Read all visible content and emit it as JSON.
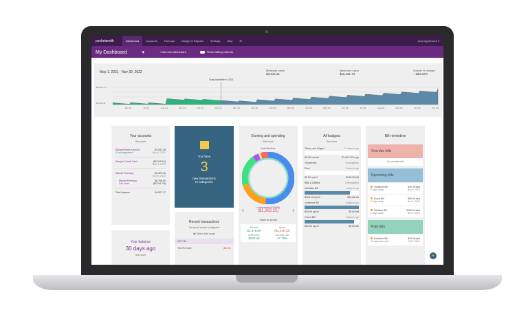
{
  "nav": {
    "logo": "pocketsmith",
    "items": [
      "Dashboard",
      "Accounts",
      "Forecast",
      "Budget & Reports",
      "Settings",
      "Help"
    ],
    "active": "Dashboard",
    "user": "Jane Appleseed"
  },
  "subbar": {
    "title": "My Dashboard",
    "add": "+ Add new dashboard",
    "toggle": "Show editing controls"
  },
  "balance_chart": {
    "range": "May 1, 2021 - Nov 30, 2022",
    "min_label": "Minimum value",
    "min": "$3,344.41",
    "max_label": "Maximum value",
    "max": "$11,231.73",
    "change_label": "Overall % change",
    "change": "↑ 190.22%",
    "today": "Today November 4, 2021"
  },
  "chart_data": {
    "type": "area",
    "x": [
      "May '21",
      "Jun '21",
      "Jul '21",
      "Aug '21",
      "Sep '21",
      "Oct '21",
      "Nov '21",
      "Dec '21",
      "Jan '22",
      "Feb '22",
      "Mar '22",
      "Apr '22",
      "May '22",
      "Jun '22",
      "Jul '22",
      "Aug '22",
      "Sep '22",
      "Oct '22",
      "Nov '22"
    ],
    "values": [
      3400,
      3500,
      3450,
      5500,
      5400,
      5200,
      4600,
      4400,
      5000,
      5400,
      5800,
      6300,
      6800,
      7300,
      7800,
      8300,
      8900,
      9400,
      10600
    ],
    "tick_labels": [
      "Jun '21",
      "Jul '21",
      "Aug '21",
      "Sep '21",
      "Oct '21",
      "Nov '21",
      "Dec '21",
      "Jan '22",
      "Feb '22",
      "Mar '22",
      "Apr '22",
      "May '22",
      "Jun '22",
      "Jul '22",
      "Aug '22",
      "Sep '22",
      "Oct '22",
      "Nov '22"
    ],
    "y_ticks": [
      "$11,231.73",
      "$3,344.41"
    ],
    "ylim": [
      2500,
      11231.73
    ],
    "colors": {
      "past": "#2db37e",
      "future": "#5b8aa8"
    }
  },
  "accounts": {
    "title": "Your accounts",
    "see_more": "See more",
    "rows": [
      {
        "name": "Sample Bank Account",
        "sub": "3 uncategorized",
        "amount": "$3,547.45",
        "date": "Nov 4, 2021"
      },
      {
        "name": "Sample Credit Card",
        "amount": "($2,345.54)",
        "date": "Nov 4, 2021"
      },
      {
        "name": "Mazda Premacy",
        "amount": "$3,425.26",
        "date": "Nov 4, 2021"
      }
    ],
    "subaccounts": [
      {
        "name": "Mazda Premacy",
        "amount": "$8,766.65"
      },
      {
        "name": "Car Loan",
        "amount": "($5,341.39)"
      }
    ],
    "total_label": "Total balance",
    "total": "$4,627.17"
  },
  "categorize": {
    "line1": "You have",
    "count": "3",
    "line2": "new transactions",
    "line3": "to categorize"
  },
  "recent": {
    "title": "Recent transactions",
    "note": "No saved search configured",
    "range": "Select date range",
    "date": "OCT 30",
    "tx": "The Fix Cafe",
    "amount": "($6.50)"
  },
  "your_balance": {
    "title": "Your balance",
    "sub": "30 days ago",
    "see_more": "See more"
  },
  "earning": {
    "title": "Earning and spending",
    "see_more": "See more",
    "period": "Last Month ▾",
    "legend": "Household (51.64%)",
    "amount": "($1,263.25)",
    "totals": "Totals for period",
    "earned_label": "Earned",
    "earned": "$2,975.80",
    "spent_label": "Spent",
    "spent": "($2,446.32)",
    "diff_label": "Difference",
    "diff": "$529.48",
    "rate_label": "Savings rate",
    "rate": "17.79%"
  },
  "budgets": {
    "title": "All budgets",
    "see_more": "See more",
    "items": [
      {
        "name": "Salary and Wages",
        "status": "13 days to go",
        "left": "$0.00 earned",
        "right": "$1,467.90 to go",
        "fill": 0
      },
      {
        "name": "Household",
        "status": "Unbudgeted"
      },
      {
        "name": "Rent",
        "status": "2 days to go",
        "left": "$0.00 spent",
        "right": "$240.00 left",
        "fill": 0
      },
      {
        "name": "Bills & Utilities",
        "status": "Unbudgeted"
      },
      {
        "name": "Meridian Bill",
        "status": "4 days to go",
        "left": "$126.16 spent",
        "right": "$23.84 left",
        "fill": 84
      },
      {
        "name": "Vodafone Bill",
        "status": "4 days to go",
        "left": "$39.99 spent",
        "right": "$0.00 left",
        "fill": 100
      },
      {
        "name": "Orcon Bill",
        "status": "4 days to go",
        "left": "$90.00 spent",
        "right": "$9.00 left",
        "fill": 91
      }
    ]
  },
  "bills": {
    "title": "Bill reminders",
    "overdue": "Overdue bills",
    "none": "No overdue bills",
    "upcoming": "Upcoming bills",
    "up": [
      {
        "name": "Vodafone Bill",
        "when": "5 days away",
        "amt": "$39.99 total",
        "date": "Nov 9, 2021"
      },
      {
        "name": "Orcon Bill",
        "when": "5 days away",
        "amt": "$99.00 total",
        "date": "Nov 9, 2021"
      },
      {
        "name": "Meridian Bill",
        "when": "5 days away",
        "amt": "$150.00 total",
        "date": "Nov 9, 2021"
      }
    ],
    "paid": "Paid bills",
    "pd": [
      {
        "name": "Vodafone Bill",
        "when": "26 days since due",
        "amt": "$39.99 paid",
        "date": "Oct 9, 2021"
      }
    ]
  }
}
